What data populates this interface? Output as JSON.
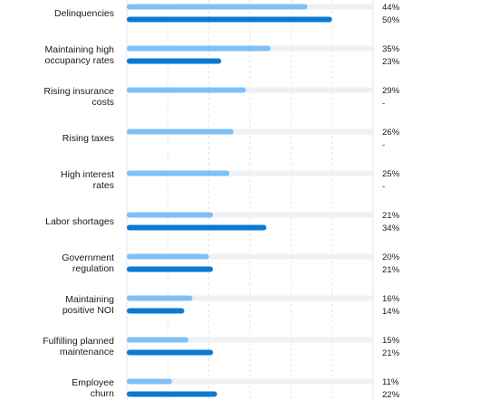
{
  "chart_data": {
    "type": "bar",
    "orientation": "horizontal",
    "categories": [
      [
        "Delinquencies"
      ],
      [
        "Maintaining high",
        "occupancy rates"
      ],
      [
        "Rising insurance",
        "costs"
      ],
      [
        "Rising taxes"
      ],
      [
        "High interest",
        "rates"
      ],
      [
        "Labor shortages"
      ],
      [
        "Government",
        "regulation"
      ],
      [
        "Maintaining",
        "positive NOI"
      ],
      [
        "Fulfilling planned",
        "maintenance"
      ],
      [
        "Employee",
        "churn"
      ]
    ],
    "series": [
      {
        "color": "#7fc0f5",
        "values": [
          44,
          35,
          29,
          26,
          25,
          21,
          20,
          16,
          15,
          11
        ],
        "labels": [
          "44%",
          "35%",
          "29%",
          "26%",
          "25%",
          "21%",
          "20%",
          "16%",
          "15%",
          "11%"
        ]
      },
      {
        "color": "#0a7ad1",
        "values": [
          50,
          23,
          null,
          null,
          null,
          34,
          21,
          14,
          21,
          22
        ],
        "labels": [
          "50%",
          "23%",
          "-",
          "-",
          "-",
          "34%",
          "21%",
          "14%",
          "21%",
          "22%"
        ]
      }
    ],
    "xlim": [
      0,
      60
    ],
    "grid": true,
    "track_color": "#eef0f5",
    "grid_color": "#dcdfe6",
    "title": "",
    "xlabel": "",
    "ylabel": ""
  }
}
